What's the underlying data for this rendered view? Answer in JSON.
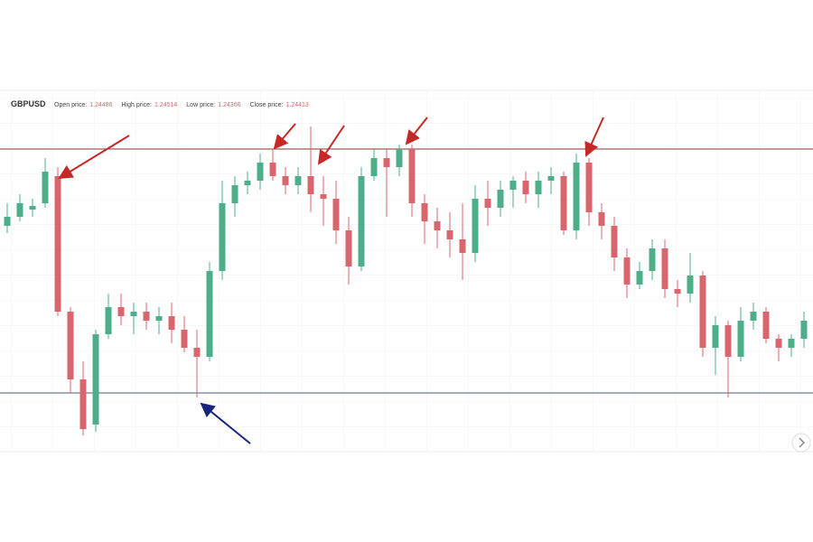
{
  "header": {
    "symbol": "GBPUSD",
    "fields": [
      {
        "label": "Open price:",
        "value": "1.24486"
      },
      {
        "label": "High price:",
        "value": "1.24514"
      },
      {
        "label": "Low price:",
        "value": "1.24366"
      },
      {
        "label": "Close price:",
        "value": "1.24413"
      }
    ]
  },
  "chart_data": {
    "type": "candlestick",
    "ylim": [
      1.238,
      1.258
    ],
    "grid": true,
    "up_color": "#4caf8a",
    "down_color": "#d9656e",
    "levels": [
      {
        "value": 1.25475,
        "color": "#8b3a3a"
      },
      {
        "value": 1.24125,
        "color": "#4a5a80"
      }
    ],
    "open": [
      1.2505,
      1.251,
      1.2514,
      1.25175,
      1.25325,
      1.24575,
      1.242,
      1.2395,
      1.2445,
      1.246,
      1.2455,
      1.24575,
      1.24525,
      1.2455,
      1.24475,
      1.24375,
      1.24325,
      1.248,
      1.25175,
      1.25275,
      1.253,
      1.254,
      1.25325,
      1.25275,
      1.25325,
      1.25225,
      1.252,
      1.25025,
      1.24825,
      1.25325,
      1.25425,
      1.25375,
      1.25475,
      1.25175,
      1.25075,
      1.25025,
      1.24975,
      1.249,
      1.252,
      1.2515,
      1.2525,
      1.253,
      1.25225,
      1.253,
      1.25325,
      1.25025,
      1.254,
      1.25125,
      1.2505,
      1.24875,
      1.24725,
      1.248,
      1.24925,
      1.247,
      1.24675,
      1.24775,
      1.24375,
      1.245,
      1.24325,
      1.24525,
      1.24575,
      1.24425,
      1.24375,
      1.24425
    ],
    "high": [
      1.25175,
      1.25225,
      1.252,
      1.25425,
      1.25375,
      1.246,
      1.243,
      1.24475,
      1.24675,
      1.24675,
      1.24625,
      1.24625,
      1.246,
      1.24625,
      1.2455,
      1.24475,
      1.2485,
      1.253,
      1.25325,
      1.2535,
      1.2545,
      1.25475,
      1.25375,
      1.25375,
      1.256,
      1.25325,
      1.253,
      1.251,
      1.25375,
      1.25475,
      1.25475,
      1.255,
      1.255,
      1.25225,
      1.2515,
      1.25125,
      1.25175,
      1.25275,
      1.253,
      1.253,
      1.25325,
      1.2535,
      1.2535,
      1.25375,
      1.2535,
      1.2545,
      1.25425,
      1.25175,
      1.251,
      1.24925,
      1.2485,
      1.24975,
      1.24975,
      1.2475,
      1.249,
      1.248,
      1.2455,
      1.24525,
      1.246,
      1.24625,
      1.246,
      1.2445,
      1.2445,
      1.24575
    ],
    "low": [
      1.2501,
      1.25075,
      1.251,
      1.2515,
      1.2455,
      1.24125,
      1.2389,
      1.2391,
      1.24425,
      1.245,
      1.2445,
      1.24475,
      1.2445,
      1.244,
      1.2435,
      1.241,
      1.243,
      1.2475,
      1.251,
      1.25225,
      1.2525,
      1.253,
      1.25225,
      1.25225,
      1.25125,
      1.2505,
      1.2495,
      1.24725,
      1.248,
      1.253,
      1.251,
      1.25325,
      1.251,
      1.2495,
      1.24925,
      1.24875,
      1.2475,
      1.2485,
      1.2505,
      1.251,
      1.2515,
      1.25175,
      1.2515,
      1.25225,
      1.25,
      1.24975,
      1.2505,
      1.24975,
      1.248,
      1.2465,
      1.247,
      1.2475,
      1.2465,
      1.246,
      1.24625,
      1.24325,
      1.24225,
      1.241,
      1.243,
      1.24475,
      1.244,
      1.243,
      1.24325,
      1.24375
    ],
    "close": [
      1.251,
      1.25175,
      1.2516,
      1.2535,
      1.24575,
      1.242,
      1.23925,
      1.2445,
      1.246,
      1.2455,
      1.24575,
      1.24525,
      1.2455,
      1.24475,
      1.24375,
      1.24325,
      1.248,
      1.25175,
      1.25275,
      1.253,
      1.254,
      1.25325,
      1.25275,
      1.25325,
      1.25225,
      1.252,
      1.25025,
      1.24825,
      1.25325,
      1.25425,
      1.25375,
      1.25475,
      1.25175,
      1.25075,
      1.25025,
      1.24975,
      1.249,
      1.252,
      1.2515,
      1.2525,
      1.253,
      1.25225,
      1.253,
      1.25325,
      1.25025,
      1.254,
      1.25125,
      1.2505,
      1.24875,
      1.24725,
      1.248,
      1.24925,
      1.247,
      1.24675,
      1.24775,
      1.24375,
      1.245,
      1.24325,
      1.24525,
      1.24575,
      1.24425,
      1.24375,
      1.24425,
      1.24525
    ]
  }
}
